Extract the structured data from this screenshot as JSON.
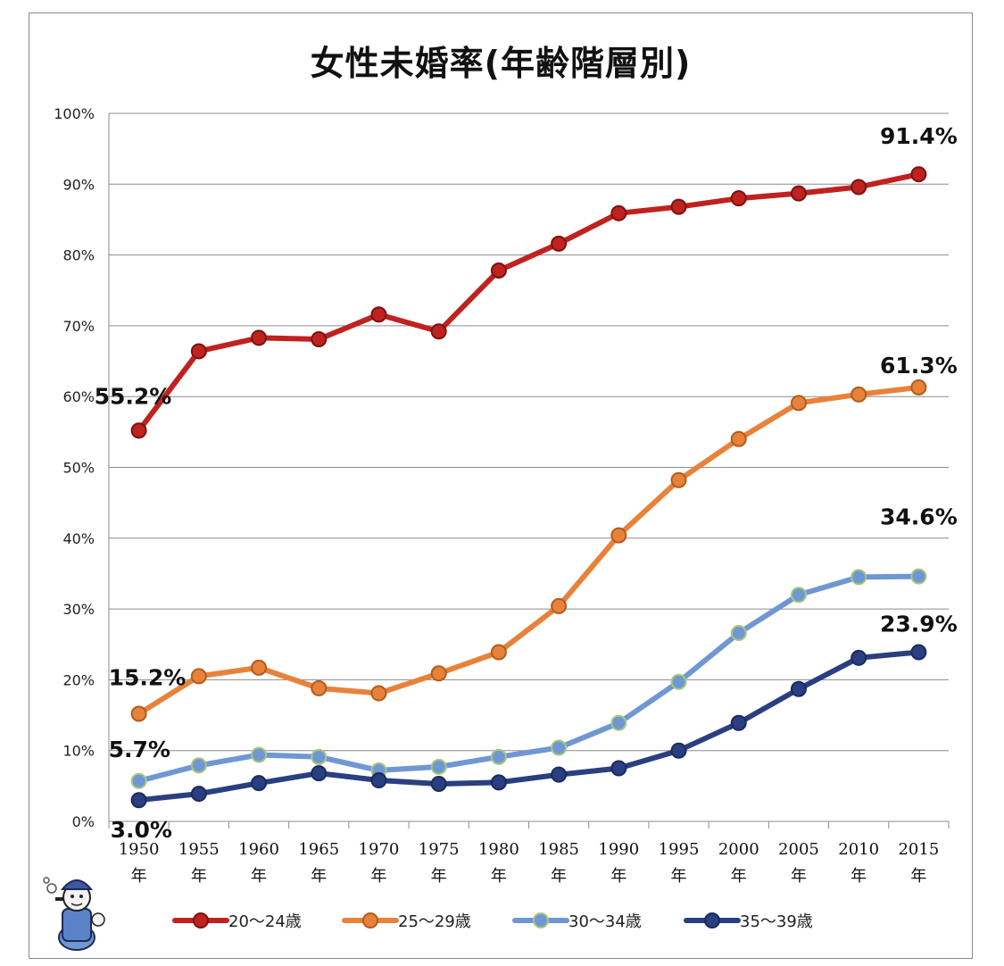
{
  "chart_data": {
    "type": "line",
    "title": "女性未婚率(年齢階層別)",
    "xlabel": "",
    "ylabel": "",
    "ylim": [
      0,
      100
    ],
    "y_ticks": [
      "0%",
      "10%",
      "20%",
      "30%",
      "40%",
      "50%",
      "60%",
      "70%",
      "80%",
      "90%",
      "100%"
    ],
    "categories": [
      "1950",
      "1955",
      "1960",
      "1965",
      "1970",
      "1975",
      "1980",
      "1985",
      "1990",
      "1995",
      "2000",
      "2005",
      "2010",
      "2015"
    ],
    "category_suffix": "年",
    "grid": true,
    "legend_position": "bottom",
    "series": [
      {
        "name": "20〜24歳",
        "color": "#c0221f",
        "values": [
          55.2,
          66.4,
          68.3,
          68.1,
          71.6,
          69.2,
          77.8,
          81.6,
          85.9,
          86.8,
          88.0,
          88.7,
          89.6,
          91.4
        ]
      },
      {
        "name": "25〜29歳",
        "color": "#e8823a",
        "values": [
          15.2,
          20.5,
          21.7,
          18.8,
          18.1,
          20.9,
          23.9,
          30.4,
          40.4,
          48.2,
          54.0,
          59.1,
          60.3,
          61.3
        ]
      },
      {
        "name": "30〜34歳",
        "color": "#6f97d3",
        "values": [
          5.7,
          7.9,
          9.4,
          9.1,
          7.2,
          7.7,
          9.1,
          10.4,
          13.9,
          19.7,
          26.6,
          32.0,
          34.5,
          34.6
        ]
      },
      {
        "name": "35〜39歳",
        "color": "#2a3f80",
        "values": [
          3.0,
          3.9,
          5.4,
          6.8,
          5.8,
          5.3,
          5.5,
          6.6,
          7.5,
          10.0,
          13.9,
          18.7,
          23.1,
          23.9
        ]
      }
    ],
    "annotations": [
      "55.2%",
      "91.4%",
      "15.2%",
      "61.3%",
      "5.7%",
      "34.6%",
      "3.0%",
      "23.9%"
    ]
  }
}
